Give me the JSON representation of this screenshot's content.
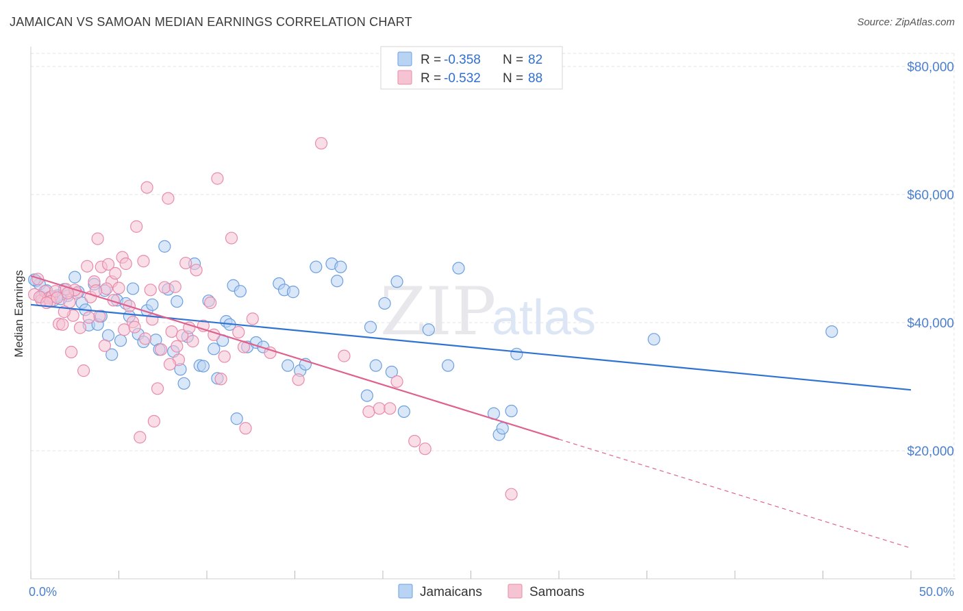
{
  "header": {
    "title": "JAMAICAN VS SAMOAN MEDIAN EARNINGS CORRELATION CHART",
    "source": "Source: ZipAtlas.com"
  },
  "legend_top": {
    "rows": [
      {
        "r_label": "R =",
        "r_value": "-0.358",
        "n_label": "N =",
        "n_value": "82"
      },
      {
        "r_label": "R =",
        "r_value": "-0.532",
        "n_label": "N =",
        "n_value": "88"
      }
    ]
  },
  "legend_bottom": {
    "items": [
      "Jamaicans",
      "Samoans"
    ]
  },
  "watermark": {
    "zip": "ZIP",
    "atlas": "atlas"
  },
  "colors": {
    "jamaicans_fill": "#b9d3f2",
    "jamaicans_stroke": "#6b9fe0",
    "jamaicans_line": "#2e72d2",
    "samoans_fill": "#f6c3d3",
    "samoans_stroke": "#e88aab",
    "samoans_line": "#e0608d",
    "tick_label": "#4a7fcf"
  },
  "chart_data": {
    "type": "scatter",
    "title": "JAMAICAN VS SAMOAN MEDIAN EARNINGS CORRELATION CHART",
    "xlabel": "",
    "ylabel": "Median Earnings",
    "xlim": [
      0,
      50
    ],
    "ylim": [
      0,
      84000
    ],
    "x_tick_labels": [
      "0.0%",
      "50.0%"
    ],
    "y_ticks": [
      20000,
      40000,
      60000,
      80000
    ],
    "y_tick_labels": [
      "$20,000",
      "$40,000",
      "$60,000",
      "$80,000"
    ],
    "grid": true,
    "legend_placement": "top-center",
    "series": [
      {
        "name": "Jamaicans",
        "R": -0.358,
        "N": 82,
        "trend": {
          "x": [
            0,
            50
          ],
          "y": [
            42800,
            29500
          ]
        },
        "points": [
          [
            0.3,
            46500
          ],
          [
            0.5,
            46000
          ],
          [
            0.6,
            44000
          ],
          [
            0.9,
            45000
          ],
          [
            1.1,
            44000
          ],
          [
            1.3,
            43500
          ],
          [
            1.5,
            44200
          ],
          [
            1.9,
            45200
          ],
          [
            2.1,
            44200
          ],
          [
            2.5,
            47100
          ],
          [
            2.9,
            43100
          ],
          [
            3.1,
            42000
          ],
          [
            3.3,
            39600
          ],
          [
            3.6,
            46000
          ],
          [
            3.8,
            39700
          ],
          [
            4.0,
            41000
          ],
          [
            4.2,
            45000
          ],
          [
            4.4,
            38000
          ],
          [
            4.6,
            35000
          ],
          [
            4.9,
            43500
          ],
          [
            5.1,
            37200
          ],
          [
            5.4,
            43000
          ],
          [
            5.6,
            41000
          ],
          [
            5.8,
            45300
          ],
          [
            6.1,
            38200
          ],
          [
            6.4,
            37000
          ],
          [
            6.6,
            41900
          ],
          [
            6.9,
            42800
          ],
          [
            7.1,
            37300
          ],
          [
            7.3,
            35800
          ],
          [
            7.6,
            51900
          ],
          [
            7.8,
            45200
          ],
          [
            8.1,
            35500
          ],
          [
            8.3,
            43300
          ],
          [
            8.5,
            32700
          ],
          [
            8.7,
            30500
          ],
          [
            8.9,
            37800
          ],
          [
            9.3,
            49200
          ],
          [
            9.6,
            33300
          ],
          [
            9.8,
            33200
          ],
          [
            10.1,
            43400
          ],
          [
            10.4,
            35900
          ],
          [
            10.6,
            31300
          ],
          [
            10.9,
            37200
          ],
          [
            11.1,
            40200
          ],
          [
            11.3,
            39700
          ],
          [
            11.5,
            45800
          ],
          [
            11.7,
            25000
          ],
          [
            11.9,
            44900
          ],
          [
            12.3,
            36200
          ],
          [
            12.8,
            36900
          ],
          [
            13.2,
            36200
          ],
          [
            14.1,
            46100
          ],
          [
            14.4,
            45100
          ],
          [
            14.6,
            33300
          ],
          [
            14.9,
            44800
          ],
          [
            15.3,
            32500
          ],
          [
            15.6,
            33500
          ],
          [
            16.2,
            48700
          ],
          [
            17.1,
            49200
          ],
          [
            17.4,
            46500
          ],
          [
            17.6,
            48700
          ],
          [
            19.1,
            28600
          ],
          [
            19.3,
            39300
          ],
          [
            19.6,
            33300
          ],
          [
            20.1,
            43000
          ],
          [
            20.5,
            32300
          ],
          [
            20.8,
            46400
          ],
          [
            21.2,
            26100
          ],
          [
            22.6,
            38900
          ],
          [
            23.7,
            33300
          ],
          [
            24.3,
            48500
          ],
          [
            26.3,
            25800
          ],
          [
            26.6,
            22500
          ],
          [
            26.8,
            23500
          ],
          [
            27.3,
            26200
          ],
          [
            27.6,
            35100
          ],
          [
            35.4,
            37400
          ],
          [
            45.5,
            38600
          ],
          [
            0.2,
            46700
          ],
          [
            1.7,
            43700
          ],
          [
            2.7,
            44800
          ]
        ]
      },
      {
        "name": "Samoans",
        "R": -0.532,
        "N": 88,
        "trend": {
          "x": [
            0,
            30
          ],
          "y": [
            47300,
            21800
          ]
        },
        "trend_extension": {
          "x": [
            30,
            50
          ],
          "y": [
            21800,
            4800
          ]
        },
        "points": [
          [
            0.2,
            44400
          ],
          [
            0.4,
            46800
          ],
          [
            0.6,
            43500
          ],
          [
            0.8,
            44900
          ],
          [
            1.0,
            43800
          ],
          [
            1.2,
            44100
          ],
          [
            1.4,
            44900
          ],
          [
            1.6,
            39800
          ],
          [
            1.8,
            39700
          ],
          [
            2.0,
            45200
          ],
          [
            2.2,
            43200
          ],
          [
            2.4,
            41100
          ],
          [
            2.6,
            44600
          ],
          [
            2.8,
            39200
          ],
          [
            3.0,
            32500
          ],
          [
            3.2,
            48800
          ],
          [
            3.4,
            44000
          ],
          [
            3.6,
            46400
          ],
          [
            3.8,
            53100
          ],
          [
            4.0,
            48700
          ],
          [
            4.2,
            36400
          ],
          [
            4.4,
            49100
          ],
          [
            4.6,
            46400
          ],
          [
            4.8,
            47700
          ],
          [
            5.0,
            45400
          ],
          [
            5.2,
            50200
          ],
          [
            5.4,
            49200
          ],
          [
            5.6,
            42600
          ],
          [
            5.8,
            40100
          ],
          [
            6.0,
            55000
          ],
          [
            6.2,
            22100
          ],
          [
            6.4,
            49600
          ],
          [
            6.6,
            61100
          ],
          [
            6.8,
            45100
          ],
          [
            7.0,
            24600
          ],
          [
            7.2,
            29700
          ],
          [
            7.4,
            35800
          ],
          [
            7.6,
            45500
          ],
          [
            7.8,
            59400
          ],
          [
            8.0,
            38600
          ],
          [
            8.2,
            45600
          ],
          [
            8.4,
            34200
          ],
          [
            8.6,
            38000
          ],
          [
            8.8,
            49300
          ],
          [
            9.0,
            39200
          ],
          [
            9.4,
            48200
          ],
          [
            9.8,
            39500
          ],
          [
            10.2,
            43100
          ],
          [
            10.6,
            62500
          ],
          [
            10.8,
            31200
          ],
          [
            11.0,
            34700
          ],
          [
            11.4,
            53200
          ],
          [
            11.8,
            38500
          ],
          [
            12.2,
            23500
          ],
          [
            12.6,
            40600
          ],
          [
            13.6,
            35300
          ],
          [
            15.2,
            31100
          ],
          [
            16.5,
            68000
          ],
          [
            17.8,
            34800
          ],
          [
            19.2,
            26100
          ],
          [
            19.8,
            26600
          ],
          [
            20.4,
            26600
          ],
          [
            20.8,
            30800
          ],
          [
            21.8,
            21500
          ],
          [
            22.4,
            20300
          ],
          [
            27.3,
            13200
          ],
          [
            2.3,
            35400
          ],
          [
            1.1,
            43300
          ],
          [
            3.9,
            41000
          ],
          [
            5.3,
            38900
          ],
          [
            6.5,
            37500
          ],
          [
            2.5,
            45100
          ],
          [
            4.7,
            43500
          ],
          [
            0.5,
            44000
          ],
          [
            1.5,
            43900
          ],
          [
            3.3,
            40800
          ],
          [
            8.3,
            36300
          ],
          [
            12.1,
            36200
          ],
          [
            9.2,
            37100
          ],
          [
            7.9,
            33500
          ],
          [
            10.4,
            38100
          ],
          [
            4.3,
            45300
          ],
          [
            1.9,
            41700
          ],
          [
            0.9,
            43100
          ],
          [
            5.9,
            39300
          ],
          [
            3.7,
            45000
          ],
          [
            2.1,
            44600
          ],
          [
            6.9,
            40500
          ]
        ]
      }
    ]
  }
}
